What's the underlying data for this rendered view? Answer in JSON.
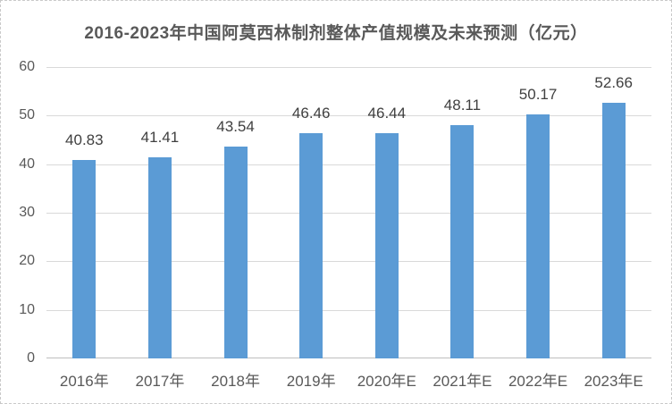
{
  "chart_data": {
    "type": "bar",
    "title": "2016-2023年中国阿莫西林制剂整体产值规模及未来预测（亿元）",
    "categories": [
      "2016年",
      "2017年",
      "2018年",
      "2019年",
      "2020年E",
      "2021年E",
      "2022年E",
      "2023年E"
    ],
    "values": [
      40.83,
      41.41,
      43.54,
      46.46,
      46.44,
      48.11,
      50.17,
      52.66
    ],
    "data_labels": [
      "40.83",
      "41.41",
      "43.54",
      "46.46",
      "46.44",
      "48.11",
      "50.17",
      "52.66"
    ],
    "xlabel": "",
    "ylabel": "",
    "ylim": [
      0,
      60
    ],
    "yticks": [
      0,
      10,
      20,
      30,
      40,
      50,
      60
    ],
    "grid": true,
    "legend": false,
    "colors": {
      "bar": "#5B9BD5",
      "title": "#595959",
      "tick_label": "#595959",
      "data_label": "#404040",
      "gridline": "#D9D9D9",
      "axis_line": "#BFBFBF",
      "frame_border": "#C9C9C9",
      "background": "#FFFFFF"
    }
  }
}
